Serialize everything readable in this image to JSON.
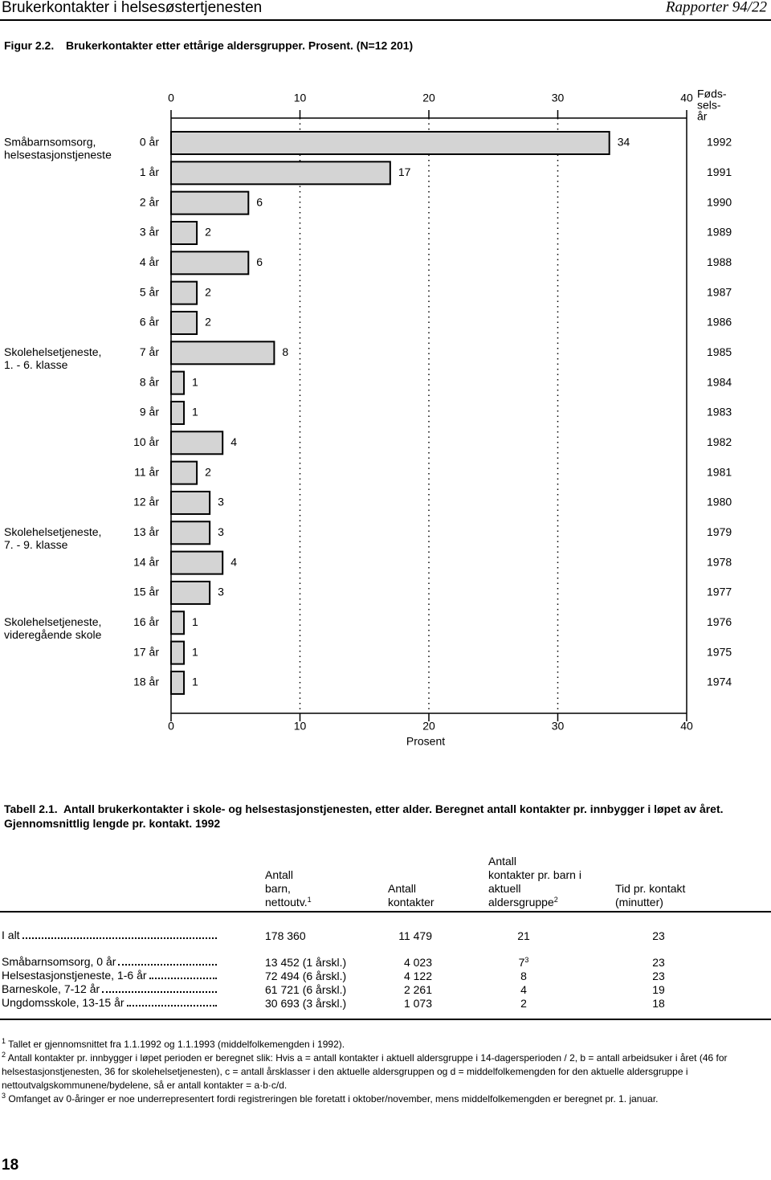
{
  "header": {
    "title": "Brukerkontakter i helsesøstertjenesten",
    "report": "Rapporter 94/22"
  },
  "chart_data": {
    "type": "bar",
    "orientation": "horizontal",
    "label": "Figur 2.2.",
    "title": "Brukerkontakter etter ettårige aldersgrupper. Prosent. (N=12 201)",
    "categories": [
      "0 år",
      "1 år",
      "2 år",
      "3 år",
      "4 år",
      "5 år",
      "6 år",
      "7 år",
      "8 år",
      "9 år",
      "10 år",
      "11 år",
      "12 år",
      "13 år",
      "14 år",
      "15 år",
      "16 år",
      "17 år",
      "18 år"
    ],
    "values": [
      34,
      17,
      6,
      2,
      6,
      2,
      2,
      8,
      1,
      1,
      4,
      2,
      3,
      3,
      4,
      3,
      1,
      1,
      1
    ],
    "y2_categories": [
      "1992",
      "1991",
      "1990",
      "1989",
      "1988",
      "1987",
      "1986",
      "1985",
      "1984",
      "1983",
      "1982",
      "1981",
      "1980",
      "1979",
      "1978",
      "1977",
      "1976",
      "1975",
      "1974"
    ],
    "y2_title": [
      "Føds-",
      "sels-",
      "år"
    ],
    "groups": [
      {
        "lines": [
          "Småbarnsomsorg,",
          "helsestasjonstjeneste"
        ]
      },
      {
        "lines": [
          "Skolehelsetjeneste,",
          "1. - 6. klasse"
        ]
      },
      {
        "lines": [
          "Skolehelsetjeneste,",
          "7. - 9. klasse"
        ]
      },
      {
        "lines": [
          "Skolehelsetjeneste,",
          "videregående skole"
        ]
      }
    ],
    "xlabel": "Prosent",
    "xlim": [
      0,
      40
    ],
    "xticks": [
      0,
      10,
      20,
      30,
      40
    ],
    "grid": true,
    "color": "#d4d4d4"
  },
  "table": {
    "label": "Tabell 2.1.",
    "title": "Antall brukerkontakter i skole- og helsestasjonstjenesten, etter alder. Beregnet antall kontakter pr. innbygger i løpet av året. Gjennomsnittlig lengde pr. kontakt. 1992",
    "columns": [
      {
        "lines": [
          "Antall",
          "barn,",
          "nettoutv."
        ],
        "sup": "1"
      },
      {
        "lines": [
          "Antall",
          "kontakter"
        ]
      },
      {
        "lines": [
          "Antall",
          "kontakter pr. barn i",
          "aktuell",
          "aldersgruppe"
        ],
        "sup": "2"
      },
      {
        "lines": [
          "Tid pr. kontakt",
          "(minutter)"
        ]
      }
    ],
    "rows": [
      [
        "I alt",
        "178 360",
        "11 479",
        "21",
        "23"
      ],
      [
        "Småbarnsomsorg, 0 år",
        "13 452 (1 årskl.)",
        "4 023",
        {
          "text": "7",
          "sup": "3"
        },
        "23"
      ],
      [
        "Helsestasjonstjeneste, 1-6 år",
        "72 494 (6 årskl.)",
        "4 122",
        "8",
        "23"
      ],
      [
        "Barneskole, 7-12 år",
        "61 721 (6 årskl.)",
        "2 261",
        "4",
        "19"
      ],
      [
        "Ungdomsskole, 13-15 år",
        "30 693 (3 årskl.)",
        "1 073",
        "2",
        "18"
      ]
    ]
  },
  "footnotes": [
    {
      "mark": "1",
      "text": "Tallet er gjennomsnittet fra 1.1.1992 og 1.1.1993 (middelfolkemengden i 1992)."
    },
    {
      "mark": "2",
      "text": "Antall kontakter pr. innbygger i løpet perioden er beregnet slik: Hvis a = antall kontakter i aktuell aldersgruppe i 14-dagersperioden / 2, b = antall arbeidsuker i året (46 for helsestasjonstjenesten, 36 for skolehelsetjenesten), c = antall årsklasser i den aktuelle aldersgruppen og d = middelfolkemengden for den aktuelle aldersgruppe i nettoutvalgskommunene/bydelene, så er antall kontakter = a·b·c/d."
    },
    {
      "mark": "3",
      "text": "Omfanget av 0-åringer er noe underrepresentert fordi registreringen ble foretatt i oktober/november, mens middelfolkemengden er beregnet pr. 1. januar."
    }
  ],
  "page_number": "18"
}
